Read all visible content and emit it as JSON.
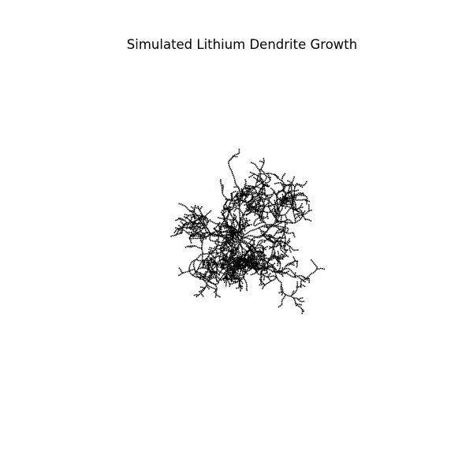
{
  "figure": {
    "title": "Simulated Lithium Dendrite Growth",
    "background_color": "#ffffff",
    "cluster_color": "#000000",
    "axes_visible": false
  }
}
